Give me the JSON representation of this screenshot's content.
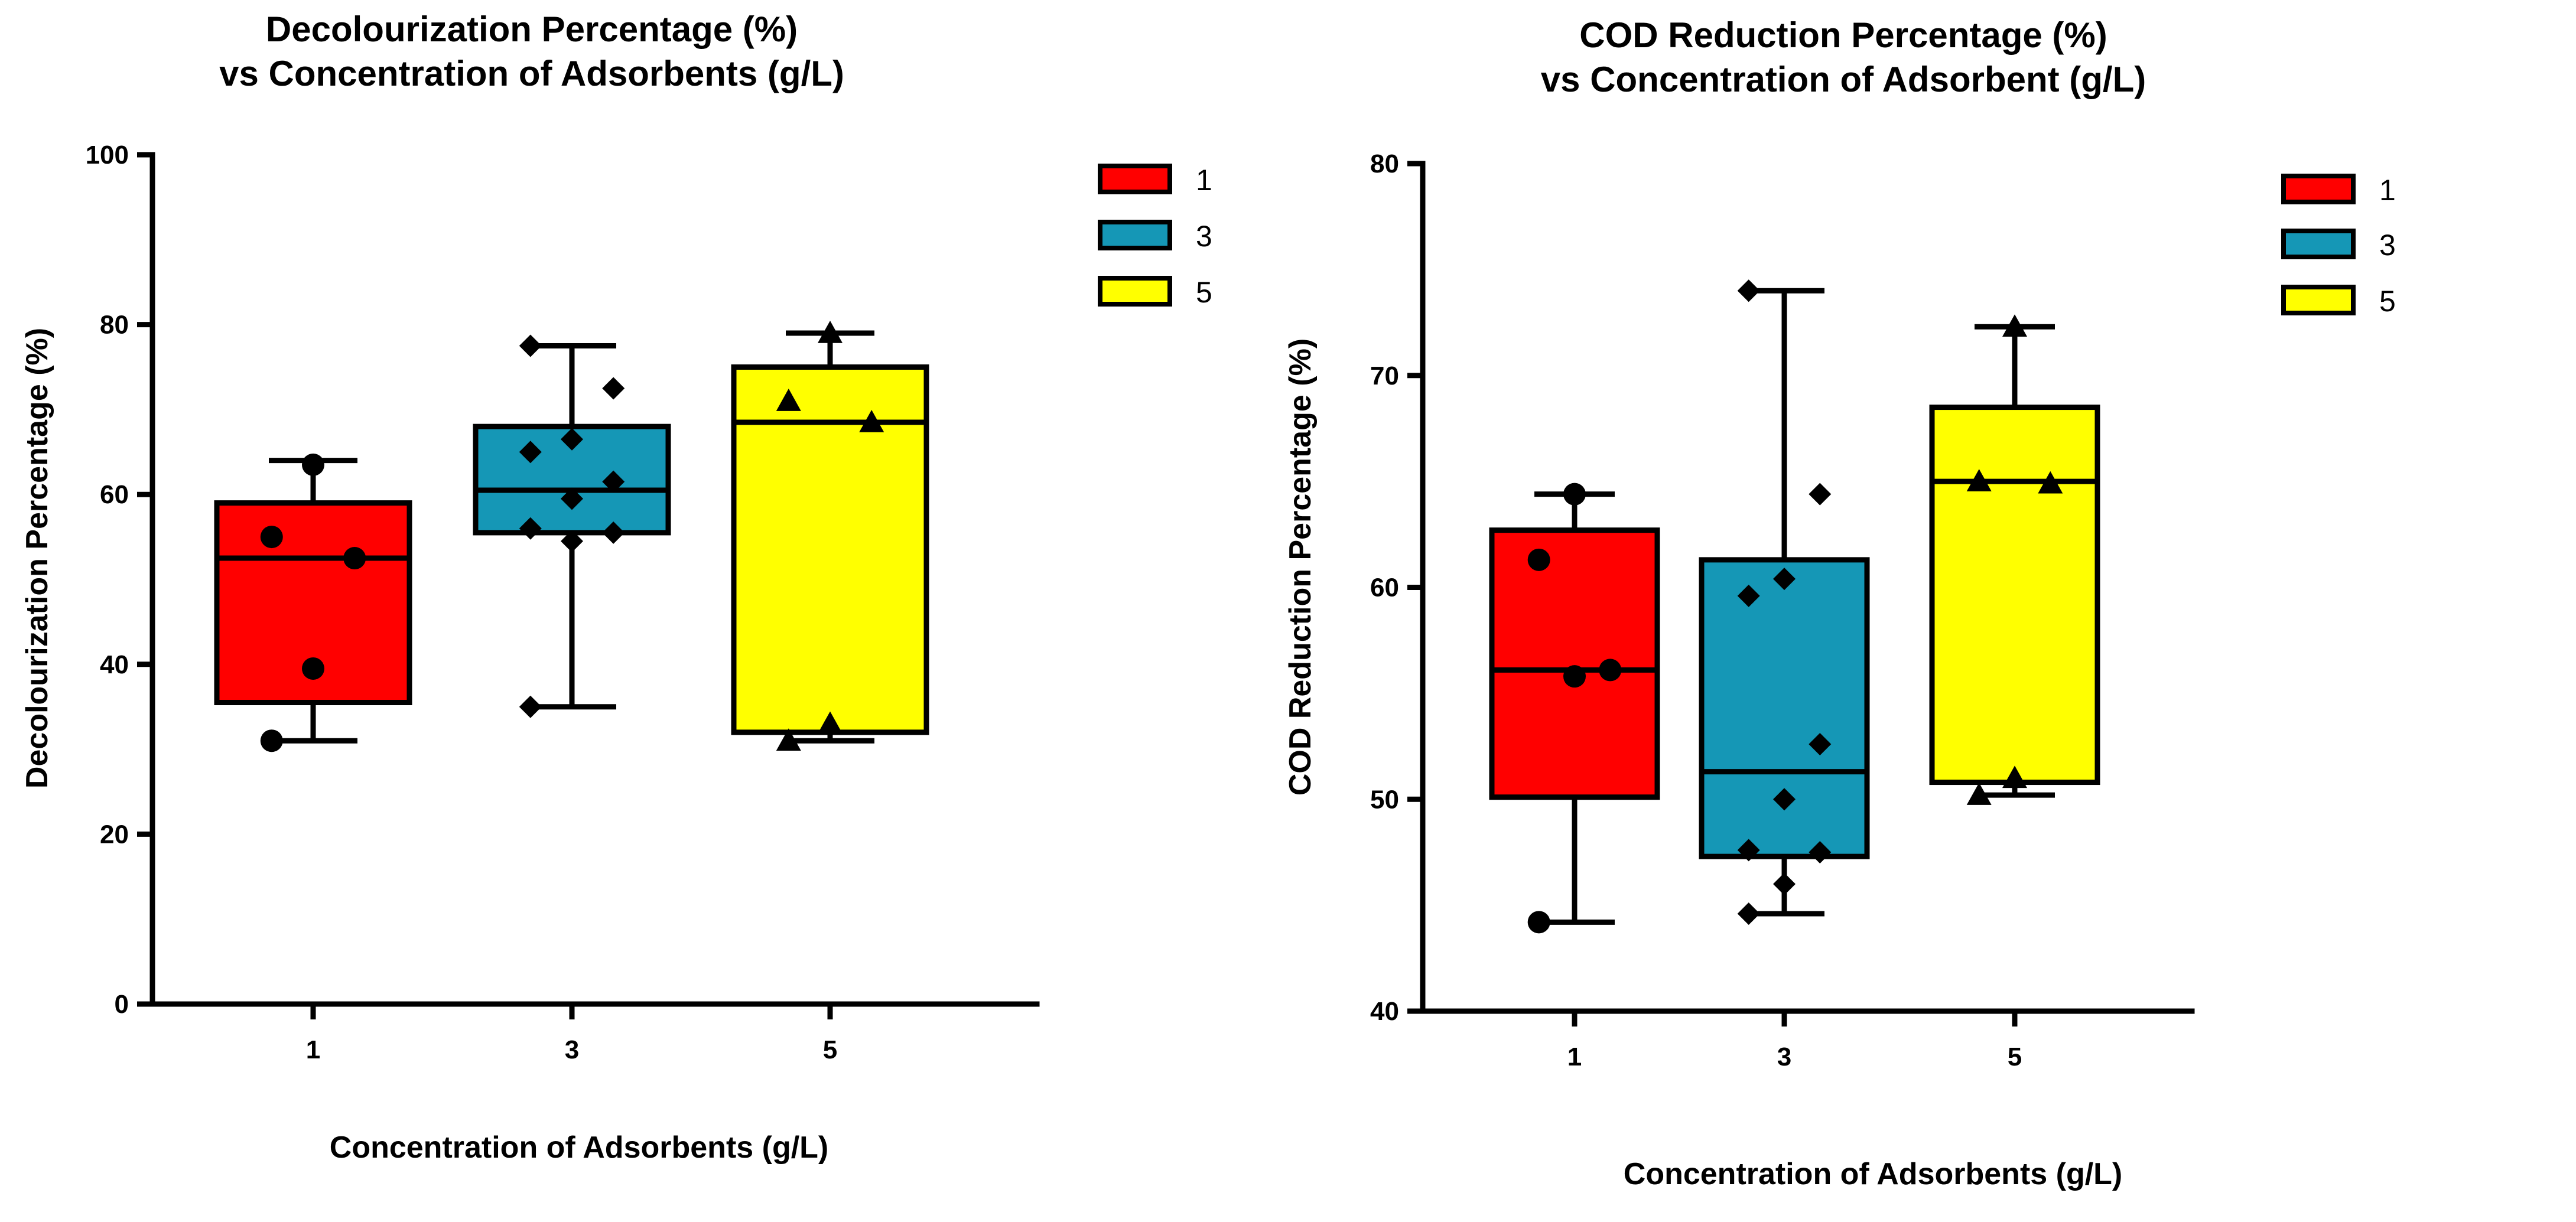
{
  "chart_data": [
    {
      "type": "boxplot",
      "title": [
        "Decolourization Percentage (%)",
        "vs Concentration of Adsorbents (g/L)"
      ],
      "xlabel": "Concentration of Adsorbents (g/L)",
      "ylabel": "Decolourization Percentage (%)",
      "ylim": [
        0,
        100
      ],
      "yticks": [
        0,
        20,
        40,
        60,
        80,
        100
      ],
      "categories": [
        "1",
        "3",
        "5"
      ],
      "legend": [
        {
          "label": "1",
          "color": "#ff0000"
        },
        {
          "label": "3",
          "color": "#1597b6"
        },
        {
          "label": "5",
          "color": "#ffff00"
        }
      ],
      "boxes": [
        {
          "category": "1",
          "color": "#ff0000",
          "marker": "circle",
          "min": 31,
          "q1": 35.5,
          "median": 52.5,
          "q3": 59,
          "max": 64,
          "points": [
            31,
            39.5,
            52.5,
            55,
            63.5
          ]
        },
        {
          "category": "3",
          "color": "#1597b6",
          "marker": "diamond",
          "min": 35,
          "q1": 55.5,
          "median": 60.5,
          "q3": 68,
          "max": 77.5,
          "points": [
            35,
            54.5,
            55.5,
            56,
            59.5,
            61.5,
            65,
            66.5,
            72.5,
            77.5
          ]
        },
        {
          "category": "5",
          "color": "#ffff00",
          "marker": "triangle",
          "min": 31,
          "q1": 32,
          "median": 68.5,
          "q3": 75,
          "max": 79,
          "points": [
            31,
            33,
            68.5,
            71,
            79
          ]
        }
      ]
    },
    {
      "type": "boxplot",
      "title": [
        "COD Reduction Percentage (%)",
        "vs Concentration of Adsorbent (g/L)"
      ],
      "xlabel": "Concentration of Adsorbents (g/L)",
      "ylabel": "COD Reduction Percentage (%)",
      "ylim": [
        40,
        80
      ],
      "yticks": [
        40,
        50,
        60,
        70,
        80
      ],
      "categories": [
        "1",
        "3",
        "5"
      ],
      "legend": [
        {
          "label": "1",
          "color": "#ff0000"
        },
        {
          "label": "3",
          "color": "#1597b6"
        },
        {
          "label": "5",
          "color": "#ffff00"
        }
      ],
      "boxes": [
        {
          "category": "1",
          "color": "#ff0000",
          "marker": "circle",
          "min": 44.2,
          "q1": 50.1,
          "median": 56.1,
          "q3": 62.7,
          "max": 64.4,
          "points": [
            44.2,
            55.8,
            56.1,
            61.3,
            64.4
          ]
        },
        {
          "category": "3",
          "color": "#1597b6",
          "marker": "diamond",
          "min": 44.6,
          "q1": 47.3,
          "median": 51.3,
          "q3": 61.3,
          "max": 74,
          "points": [
            44.6,
            46,
            47.5,
            47.6,
            50,
            52.6,
            59.6,
            60.4,
            64.4,
            74
          ]
        },
        {
          "category": "5",
          "color": "#ffff00",
          "marker": "triangle",
          "min": 50.2,
          "q1": 50.8,
          "median": 65,
          "q3": 68.5,
          "max": 72.3,
          "points": [
            50.2,
            51,
            64.9,
            65,
            72.3
          ]
        }
      ]
    }
  ]
}
